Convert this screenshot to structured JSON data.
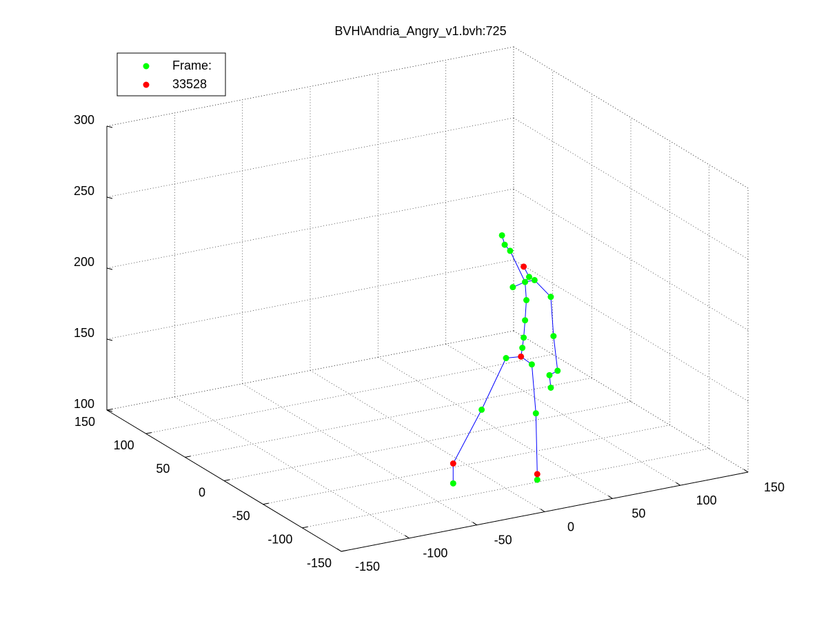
{
  "chart_data": {
    "type": "scatter3d",
    "title": "BVH\\Andria_Angry_v1.bvh:725",
    "xlim": [
      -150,
      150
    ],
    "xticks": [
      -150,
      -100,
      -50,
      0,
      50,
      100,
      150
    ],
    "ylim": [
      -150,
      150
    ],
    "yticks": [
      -150,
      -100,
      -50,
      0,
      50,
      100,
      150
    ],
    "zlim": [
      100,
      300
    ],
    "zticks": [
      100,
      150,
      200,
      250,
      300
    ],
    "grid": true,
    "legend": "upper left",
    "series": [
      {
        "name": "Frame:",
        "color": "#00ff00",
        "x": [
          6,
          8,
          12,
          26,
          23,
          30,
          14,
          42,
          24,
          23,
          22,
          44,
          21,
          9,
          28,
          47,
          41,
          42,
          -9,
          31,
          -30,
          32
        ],
        "y": [
          -85,
          -85,
          -85,
          -85,
          -85,
          -85,
          -85,
          -85,
          -85,
          -85,
          -85,
          -85,
          -85,
          -85,
          -85,
          -85,
          -85,
          -85,
          -85,
          -85,
          -85,
          -85
        ],
        "z": [
          272,
          265,
          260,
          239,
          236,
          236,
          234,
          222,
          223,
          209,
          197,
          194,
          190,
          185,
          177,
          169,
          167,
          158,
          152,
          142,
          104,
          95
        ]
      },
      {
        "name": "33528",
        "color": "#ff0000",
        "x": [
          22,
          20,
          -30,
          32
        ],
        "y": [
          -85,
          -85,
          -85,
          -85
        ],
        "z": [
          247,
          184,
          118,
          99
        ]
      }
    ],
    "bones": {
      "color": "#0000ff",
      "x": [
        6,
        8,
        12,
        23,
        24,
        23,
        22,
        21,
        20,
        null,
        14,
        23,
        30,
        42,
        44,
        47,
        41,
        42,
        null,
        9,
        -9,
        -30,
        -30,
        null,
        28,
        31,
        32,
        32,
        null,
        9,
        20,
        28,
        null,
        22,
        26,
        23
      ],
      "y": [
        -85,
        -85,
        -85,
        -85,
        -85,
        -85,
        -85,
        -85,
        -85,
        null,
        -85,
        -85,
        -85,
        -85,
        -85,
        -85,
        -85,
        -85,
        null,
        -85,
        -85,
        -85,
        -85,
        null,
        -85,
        -85,
        -85,
        -85,
        null,
        -85,
        -85,
        -85,
        null,
        -85,
        -85,
        -85
      ],
      "z": [
        272,
        265,
        260,
        236,
        223,
        209,
        197,
        190,
        184,
        null,
        234,
        236,
        236,
        222,
        194,
        169,
        167,
        158,
        null,
        185,
        152,
        118,
        104,
        null,
        177,
        142,
        99,
        95,
        null,
        185,
        184,
        177,
        null,
        247,
        239,
        236
      ]
    }
  }
}
